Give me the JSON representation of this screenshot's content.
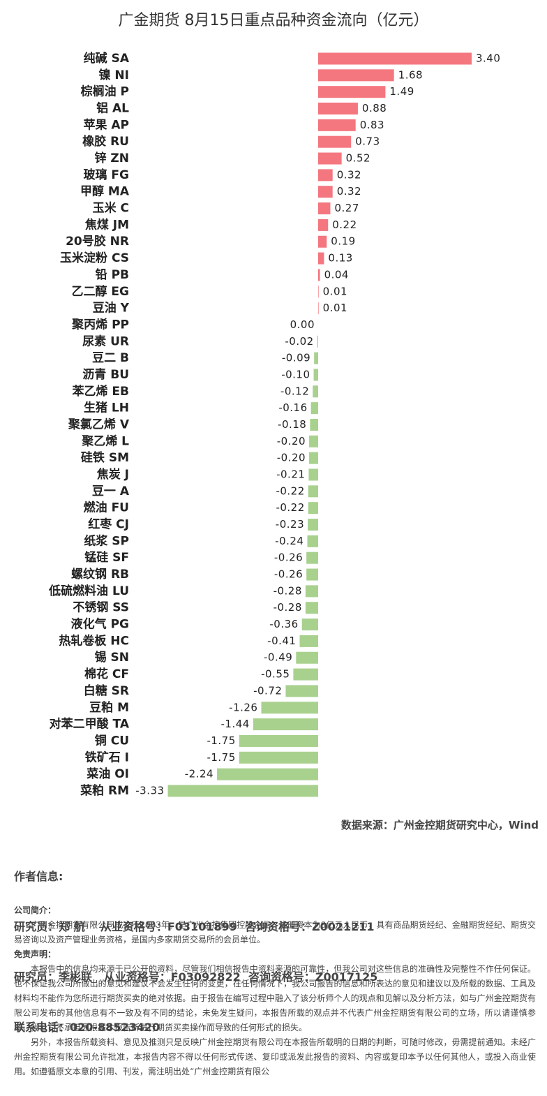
{
  "chart_data": {
    "type": "barh",
    "title": "广金期货 8月15日重点品种资金流向（亿元）",
    "categories": [
      "纯碱 SA",
      "镍 NI",
      "棕榈油 P",
      "铝 AL",
      "苹果 AP",
      "橡胶 RU",
      "锌 ZN",
      "玻璃 FG",
      "甲醇 MA",
      "玉米 C",
      "焦煤 JM",
      "20号胶 NR",
      "玉米淀粉 CS",
      "铅 PB",
      "乙二醇 EG",
      "豆油 Y",
      "聚丙烯 PP",
      "尿素 UR",
      "豆二 B",
      "沥青 BU",
      "苯乙烯 EB",
      "生猪 LH",
      "聚氯乙烯 V",
      "聚乙烯 L",
      "硅铁 SM",
      "焦炭 J",
      "豆一 A",
      "燃油 FU",
      "红枣 CJ",
      "纸浆 SP",
      "锰硅 SF",
      "螺纹钢 RB",
      "低硫燃料油 LU",
      "不锈钢 SS",
      "液化气 PG",
      "热轧卷板 HC",
      "锡 SN",
      "棉花 CF",
      "白糖 SR",
      "豆粕 M",
      "对苯二甲酸 TA",
      "铜 CU",
      "铁矿石 I",
      "菜油 OI",
      "菜粕 RM"
    ],
    "values": [
      3.4,
      1.68,
      1.49,
      0.88,
      0.83,
      0.73,
      0.52,
      0.32,
      0.32,
      0.27,
      0.22,
      0.19,
      0.13,
      0.04,
      0.01,
      0.01,
      0,
      -0.02,
      -0.09,
      -0.1,
      -0.12,
      -0.16,
      -0.18,
      -0.2,
      -0.2,
      -0.21,
      -0.22,
      -0.22,
      -0.23,
      -0.24,
      -0.26,
      -0.26,
      -0.28,
      -0.28,
      -0.36,
      -0.41,
      -0.49,
      -0.55,
      -0.72,
      -1.26,
      -1.44,
      -1.75,
      -1.75,
      -2.24,
      -3.33
    ],
    "value_labels": [
      "3.40",
      "1.68",
      "1.49",
      "0.88",
      "0.83",
      "0.73",
      "0.52",
      "0.32",
      "0.32",
      "0.27",
      "0.22",
      "0.19",
      "0.13",
      "0.04",
      "0.01",
      "0.01",
      "0.00",
      "-0.02",
      "-0.09",
      "-0.10",
      "-0.12",
      "-0.16",
      "-0.18",
      "-0.20",
      "-0.20",
      "-0.21",
      "-0.22",
      "-0.22",
      "-0.23",
      "-0.24",
      "-0.26",
      "-0.26",
      "-0.28",
      "-0.28",
      "-0.36",
      "-0.41",
      "-0.49",
      "-0.55",
      "-0.72",
      "-1.26",
      "-1.44",
      "-1.75",
      "-1.75",
      "-2.24",
      "-3.33"
    ],
    "color": "#f4777f",
    "negative_color": "#a9d18e"
  },
  "source": "数据来源：广州金控期货研究中心，Wind",
  "author": {
    "heading": "作者信息:",
    "lines": [
      "研究员：郑 航    从业资格号：F03101899  咨询资格号：Z0021211",
      "研究员：李彬联   从业资格号：F03092822  咨询资格号：Z0017125",
      "联系电话：020-88523420"
    ]
  },
  "company": {
    "heading": "公司简介：",
    "text": "广州金控期货有限公司成立于2003年，是广州金控集团控股企业，注册资本为8亿元人民币，具有商品期货经纪、金融期货经纪、期货交易咨询以及资产管理业务资格，是国内多家期货交易所的会员单位。"
  },
  "disclaimer": {
    "heading": "免责声明：",
    "paragraphs": [
      "本报告中的信息均来源于已公开的资料，尽管我们相信报告中资料来源的可靠性，但我公司对这些信息的准确性及完整性不作任何保证。也不保证我公司所做出的意见和建议不会发生任何的变更，在任何情况下，我公司报告的信息和所表达的意见和建议以及所载的数据、工具及材料均不能作为您所进行期货买卖的绝对依据。由于报告在编写过程中融入了该分析师个人的观点和见解以及分析方法，如与广州金控期货有限公司发布的其他信息有不一致及有不同的结论，未免发生疑问，本报告所载的观点并不代表广州金控期货有限公司的立场，所以请谨慎参考。我公司不承担因根据本报告所进行期货买卖操作而导致的任何形式的损失。",
      "另外，本报告所载资料、意见及推测只是反映广州金控期货有限公司在本报告所载明的日期的判断，可随时修改，毋需提前通知。未经广州金控期货有限公司允许批准，本报告内容不得以任何形式传送、复印或派发此报告的资料、内容或复印本予以任何其他人，或投入商业使用。如遵循原文本意的引用、刊发，需注明出处“广州金控期货有限公"
    ]
  }
}
